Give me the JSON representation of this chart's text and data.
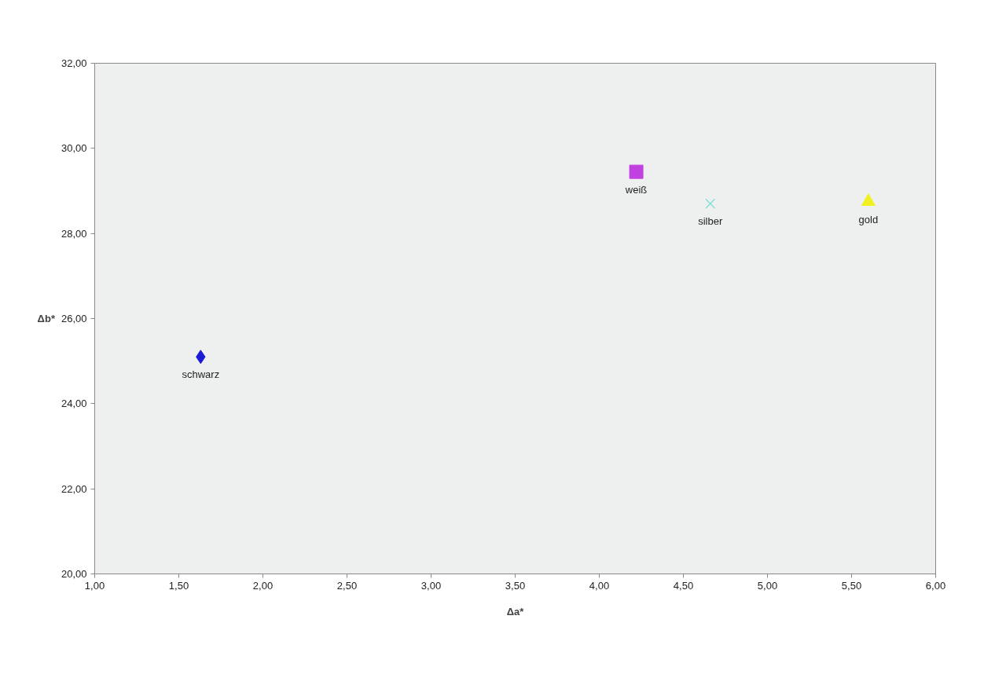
{
  "chart_data": {
    "type": "scatter",
    "xlabel": "Δa*",
    "ylabel": "Δb*",
    "xlim": [
      1,
      6
    ],
    "ylim": [
      20,
      32
    ],
    "xticks": [
      {
        "value": 1,
        "label": "1,00"
      },
      {
        "value": 1.5,
        "label": "1,50"
      },
      {
        "value": 2,
        "label": "2,00"
      },
      {
        "value": 2.5,
        "label": "2,50"
      },
      {
        "value": 3,
        "label": "3,00"
      },
      {
        "value": 3.5,
        "label": "3,50"
      },
      {
        "value": 4,
        "label": "4,00"
      },
      {
        "value": 4.5,
        "label": "4,50"
      },
      {
        "value": 5,
        "label": "5,00"
      },
      {
        "value": 5.5,
        "label": "5,50"
      },
      {
        "value": 6,
        "label": "6,00"
      }
    ],
    "yticks": [
      {
        "value": 20,
        "label": "20,00"
      },
      {
        "value": 22,
        "label": "22,00"
      },
      {
        "value": 24,
        "label": "24,00"
      },
      {
        "value": 26,
        "label": "26,00"
      },
      {
        "value": 28,
        "label": "28,00"
      },
      {
        "value": 30,
        "label": "30,00"
      },
      {
        "value": 32,
        "label": "32,00"
      }
    ],
    "grid": false,
    "series": [
      {
        "name": "schwarz",
        "color": "#1a1ad6",
        "marker": "diamond",
        "x": [
          1.63
        ],
        "values": [
          25.1
        ]
      },
      {
        "name": "weiß",
        "color": "#c040e0",
        "marker": "square",
        "x": [
          4.22
        ],
        "values": [
          29.45
        ]
      },
      {
        "name": "silber",
        "color": "#80e0d0",
        "marker": "cross",
        "x": [
          4.66
        ],
        "values": [
          28.7
        ]
      },
      {
        "name": "gold",
        "color": "#f0f020",
        "marker": "triangle",
        "x": [
          5.6
        ],
        "values": [
          28.75
        ]
      }
    ]
  }
}
